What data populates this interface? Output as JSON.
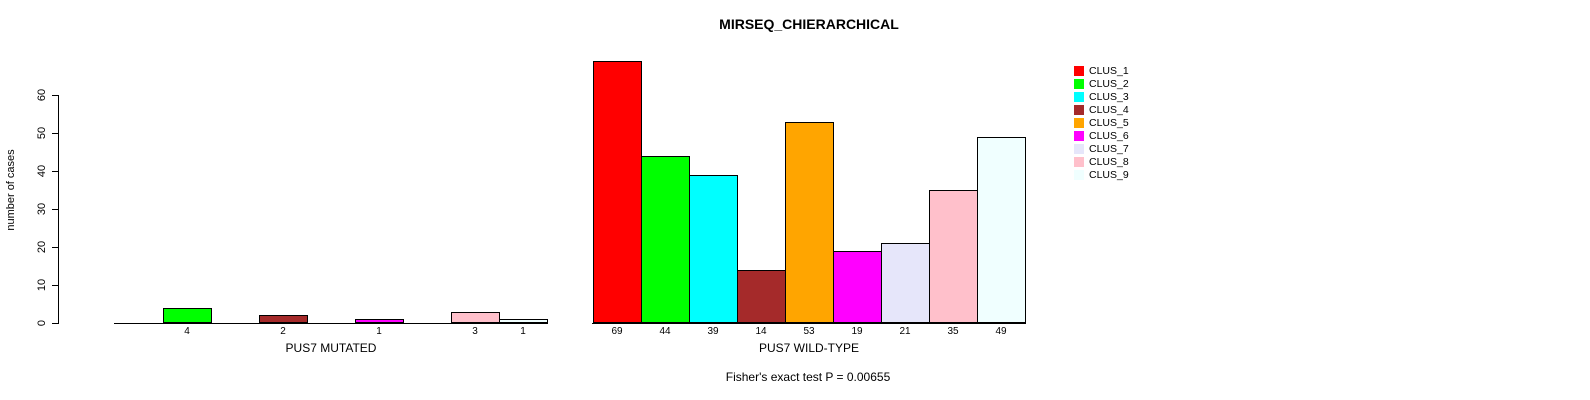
{
  "chart_data": {
    "type": "bar",
    "title": "MIRSEQ_CHIERARCHICAL",
    "ylabel": "number of cases",
    "annotation": "Fisher's exact test P = 0.00655",
    "ylim": [
      0,
      70
    ],
    "yticks": [
      0,
      10,
      20,
      30,
      40,
      50,
      60
    ],
    "grid": false,
    "legend_position": "right",
    "legend": [
      {
        "label": "CLUS_1",
        "color": "#FF0000"
      },
      {
        "label": "CLUS_2",
        "color": "#00FF00"
      },
      {
        "label": "CLUS_3",
        "color": "#00FFFF"
      },
      {
        "label": "CLUS_4",
        "color": "#A52A2A"
      },
      {
        "label": "CLUS_5",
        "color": "#FFA500"
      },
      {
        "label": "CLUS_6",
        "color": "#FF00FF"
      },
      {
        "label": "CLUS_7",
        "color": "#E6E6FA"
      },
      {
        "label": "CLUS_8",
        "color": "#FFC0CB"
      },
      {
        "label": "CLUS_9",
        "color": "#F0FFFF"
      }
    ],
    "groups": [
      {
        "label": "PUS7 MUTATED",
        "values": [
          0,
          4,
          0,
          2,
          0,
          1,
          0,
          3,
          1
        ]
      },
      {
        "label": "PUS7 WILD-TYPE",
        "values": [
          69,
          44,
          39,
          14,
          53,
          19,
          21,
          35,
          49
        ]
      }
    ]
  }
}
